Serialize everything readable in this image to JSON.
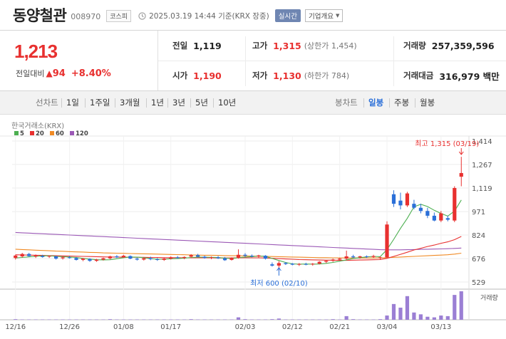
{
  "header": {
    "name": "동양철관",
    "code": "008970",
    "market": "코스피",
    "as_of": "2025.03.19 14:44  기준(KRX 장중)",
    "realtime_label": "실시간",
    "company_label": "기업개요",
    "icons": {
      "clock": "clock-icon",
      "company_caret": "chevron-down-icon"
    }
  },
  "quote": {
    "price": "1,213",
    "change_label": "전일대비",
    "change_icon": "triangle-up-icon",
    "change_value": "94",
    "change_pct": "+8.40%",
    "prev_close_label": "전일",
    "prev_close": "1,119",
    "open_label": "시가",
    "open": "1,190",
    "high_label": "고가",
    "high": "1,315",
    "upper_limit": "(상한가 1,454)",
    "low_label": "저가",
    "low": "1,130",
    "lower_limit": "(하한가 784)",
    "volume_label": "거래량",
    "volume": "257,359,596",
    "amount_label": "거래대금",
    "amount": "316,979 백만"
  },
  "periods": {
    "label": "선차트",
    "items": [
      "1일",
      "1주일",
      "3개월",
      "1년",
      "3년",
      "5년",
      "10년"
    ],
    "candle_label": "봉차트",
    "candle_items": [
      "일봉",
      "주봉",
      "월봉"
    ],
    "selected": "일봉"
  },
  "colors": {
    "up": "#e8302f",
    "down": "#2a6fd8",
    "ma5": "#4caf50",
    "ma20": "#e8302f",
    "ma60": "#f08a24",
    "ma120": "#9b59b6",
    "volume": "#9b7fd4"
  },
  "chart_data": {
    "type": "candlestick",
    "source_label": "한국거래소(KRX)",
    "legend": [
      {
        "name": "5",
        "color": "#4caf50"
      },
      {
        "name": "20",
        "color": "#e8302f"
      },
      {
        "name": "60",
        "color": "#f08a24"
      },
      {
        "name": "120",
        "color": "#9b59b6"
      }
    ],
    "y_ticks": [
      "1,414",
      "1,267",
      "1,119",
      "971",
      "824",
      "676",
      "529"
    ],
    "y_tick_values": [
      1414,
      1267,
      1119,
      971,
      824,
      676,
      529
    ],
    "ylim": [
      529,
      1414
    ],
    "x_ticks": [
      "12/16",
      "12/26",
      "01/08",
      "01/17",
      "02/03",
      "02/12",
      "02/21",
      "03/04",
      "03/13"
    ],
    "volume_label": "거래량",
    "max_annotation": "최고 1,315 (03/19)",
    "min_annotation": "최저 600 (02/10)",
    "candles": [
      {
        "o": 680,
        "h": 700,
        "l": 670,
        "c": 695
      },
      {
        "o": 690,
        "h": 712,
        "l": 682,
        "c": 705
      },
      {
        "o": 705,
        "h": 712,
        "l": 688,
        "c": 692
      },
      {
        "o": 690,
        "h": 702,
        "l": 680,
        "c": 697
      },
      {
        "o": 692,
        "h": 700,
        "l": 682,
        "c": 686
      },
      {
        "o": 688,
        "h": 696,
        "l": 680,
        "c": 693
      },
      {
        "o": 690,
        "h": 694,
        "l": 670,
        "c": 676
      },
      {
        "o": 678,
        "h": 690,
        "l": 670,
        "c": 684
      },
      {
        "o": 684,
        "h": 692,
        "l": 676,
        "c": 680
      },
      {
        "o": 680,
        "h": 686,
        "l": 664,
        "c": 668
      },
      {
        "o": 668,
        "h": 680,
        "l": 660,
        "c": 676
      },
      {
        "o": 674,
        "h": 678,
        "l": 656,
        "c": 662
      },
      {
        "o": 662,
        "h": 674,
        "l": 656,
        "c": 670
      },
      {
        "o": 670,
        "h": 682,
        "l": 664,
        "c": 678
      },
      {
        "o": 678,
        "h": 694,
        "l": 672,
        "c": 690
      },
      {
        "o": 690,
        "h": 698,
        "l": 680,
        "c": 684
      },
      {
        "o": 684,
        "h": 700,
        "l": 680,
        "c": 694
      },
      {
        "o": 692,
        "h": 696,
        "l": 672,
        "c": 676
      },
      {
        "o": 676,
        "h": 682,
        "l": 664,
        "c": 670
      },
      {
        "o": 670,
        "h": 684,
        "l": 664,
        "c": 678
      },
      {
        "o": 678,
        "h": 688,
        "l": 666,
        "c": 672
      },
      {
        "o": 672,
        "h": 680,
        "l": 662,
        "c": 668
      },
      {
        "o": 668,
        "h": 682,
        "l": 662,
        "c": 676
      },
      {
        "o": 676,
        "h": 690,
        "l": 670,
        "c": 684
      },
      {
        "o": 684,
        "h": 692,
        "l": 676,
        "c": 680
      },
      {
        "o": 680,
        "h": 690,
        "l": 672,
        "c": 686
      },
      {
        "o": 688,
        "h": 704,
        "l": 682,
        "c": 698
      },
      {
        "o": 698,
        "h": 706,
        "l": 684,
        "c": 688
      },
      {
        "o": 688,
        "h": 694,
        "l": 676,
        "c": 680
      },
      {
        "o": 680,
        "h": 690,
        "l": 672,
        "c": 684
      },
      {
        "o": 684,
        "h": 692,
        "l": 674,
        "c": 678
      },
      {
        "o": 678,
        "h": 686,
        "l": 662,
        "c": 666
      },
      {
        "o": 668,
        "h": 684,
        "l": 664,
        "c": 680
      },
      {
        "o": 680,
        "h": 734,
        "l": 676,
        "c": 700
      },
      {
        "o": 700,
        "h": 710,
        "l": 686,
        "c": 694
      },
      {
        "o": 694,
        "h": 702,
        "l": 684,
        "c": 690
      },
      {
        "o": 690,
        "h": 700,
        "l": 680,
        "c": 696
      },
      {
        "o": 694,
        "h": 698,
        "l": 670,
        "c": 676
      },
      {
        "o": 640,
        "h": 652,
        "l": 626,
        "c": 632
      },
      {
        "o": 632,
        "h": 660,
        "l": 600,
        "c": 648
      },
      {
        "o": 648,
        "h": 654,
        "l": 636,
        "c": 642
      },
      {
        "o": 644,
        "h": 648,
        "l": 634,
        "c": 638
      },
      {
        "o": 638,
        "h": 648,
        "l": 630,
        "c": 642
      },
      {
        "o": 642,
        "h": 650,
        "l": 634,
        "c": 640
      },
      {
        "o": 640,
        "h": 648,
        "l": 632,
        "c": 644
      },
      {
        "o": 644,
        "h": 660,
        "l": 640,
        "c": 656
      },
      {
        "o": 656,
        "h": 666,
        "l": 648,
        "c": 662
      },
      {
        "o": 662,
        "h": 676,
        "l": 656,
        "c": 670
      },
      {
        "o": 670,
        "h": 680,
        "l": 664,
        "c": 676
      },
      {
        "o": 676,
        "h": 726,
        "l": 668,
        "c": 690
      },
      {
        "o": 690,
        "h": 700,
        "l": 680,
        "c": 684
      },
      {
        "o": 684,
        "h": 694,
        "l": 676,
        "c": 690
      },
      {
        "o": 690,
        "h": 696,
        "l": 680,
        "c": 686
      },
      {
        "o": 686,
        "h": 700,
        "l": 680,
        "c": 692
      },
      {
        "o": 680,
        "h": 690,
        "l": 670,
        "c": 684
      },
      {
        "o": 684,
        "h": 910,
        "l": 680,
        "c": 890
      },
      {
        "o": 1080,
        "h": 1105,
        "l": 1000,
        "c": 1020
      },
      {
        "o": 1040,
        "h": 1090,
        "l": 985,
        "c": 1010
      },
      {
        "o": 1010,
        "h": 1095,
        "l": 1000,
        "c": 1085
      },
      {
        "o": 1020,
        "h": 1045,
        "l": 985,
        "c": 995
      },
      {
        "o": 995,
        "h": 1020,
        "l": 960,
        "c": 975
      },
      {
        "o": 975,
        "h": 995,
        "l": 930,
        "c": 945
      },
      {
        "o": 945,
        "h": 965,
        "l": 910,
        "c": 915
      },
      {
        "o": 915,
        "h": 975,
        "l": 905,
        "c": 960
      },
      {
        "o": 930,
        "h": 945,
        "l": 910,
        "c": 920
      },
      {
        "o": 915,
        "h": 1130,
        "l": 905,
        "c": 1119
      },
      {
        "o": 1190,
        "h": 1315,
        "l": 1130,
        "c": 1213
      }
    ],
    "volume": [
      2,
      1,
      1,
      1,
      1,
      1,
      1,
      1,
      1,
      1,
      1,
      1,
      1,
      1,
      2,
      1,
      1,
      1,
      1,
      1,
      1,
      1,
      1,
      1,
      1,
      1,
      2,
      1,
      1,
      1,
      1,
      1,
      1,
      8,
      2,
      1,
      1,
      1,
      2,
      4,
      1,
      1,
      1,
      1,
      1,
      1,
      1,
      2,
      1,
      12,
      2,
      1,
      1,
      1,
      2,
      14,
      52,
      40,
      78,
      24,
      18,
      10,
      8,
      14,
      12,
      82,
      94
    ],
    "ma5": [
      680,
      683,
      687,
      690,
      693,
      694,
      690,
      688,
      686,
      683,
      677,
      673,
      669,
      668,
      669,
      675,
      682,
      686,
      685,
      682,
      676,
      672,
      672,
      675,
      676,
      679,
      683,
      685,
      685,
      684,
      683,
      679,
      677,
      682,
      686,
      688,
      692,
      691,
      677,
      664,
      652,
      643,
      641,
      642,
      641,
      642,
      646,
      652,
      660,
      668,
      677,
      682,
      687,
      690,
      688,
      733,
      797,
      866,
      928,
      1001,
      1017,
      1003,
      979,
      959,
      943,
      974,
      1044
    ],
    "ma20": [
      700,
      699,
      698,
      697,
      696,
      695,
      694,
      693,
      692,
      691,
      690,
      689,
      688,
      687,
      686,
      686,
      685,
      685,
      684,
      684,
      683,
      683,
      682,
      682,
      682,
      681,
      681,
      681,
      681,
      681,
      680,
      680,
      680,
      681,
      681,
      681,
      681,
      680,
      678,
      676,
      674,
      672,
      670,
      669,
      668,
      667,
      666,
      666,
      665,
      665,
      666,
      667,
      668,
      669,
      670,
      678,
      690,
      703,
      716,
      730,
      741,
      752,
      761,
      772,
      781,
      795,
      815
    ],
    "ma60": [
      735,
      733,
      731,
      729,
      727,
      725,
      723,
      722,
      720,
      718,
      717,
      715,
      714,
      712,
      711,
      710,
      709,
      708,
      707,
      706,
      705,
      704,
      703,
      702,
      701,
      700,
      699,
      698,
      697,
      697,
      696,
      695,
      694,
      694,
      693,
      692,
      691,
      690,
      689,
      688,
      687,
      686,
      685,
      684,
      683,
      682,
      682,
      681,
      681,
      680,
      680,
      680,
      680,
      680,
      680,
      682,
      684,
      686,
      688,
      690,
      692,
      694,
      696,
      698,
      700,
      704,
      710
    ],
    "ma120": [
      840,
      838,
      836,
      834,
      832,
      830,
      828,
      826,
      824,
      822,
      820,
      818,
      816,
      814,
      812,
      810,
      808,
      806,
      804,
      802,
      800,
      798,
      796,
      794,
      792,
      790,
      788,
      786,
      784,
      782,
      780,
      778,
      776,
      774,
      772,
      770,
      768,
      766,
      764,
      762,
      760,
      758,
      756,
      754,
      752,
      750,
      748,
      746,
      744,
      742,
      740,
      738,
      736,
      734,
      732,
      731,
      731,
      731,
      732,
      733,
      734,
      735,
      736,
      737,
      738,
      740,
      742
    ]
  }
}
